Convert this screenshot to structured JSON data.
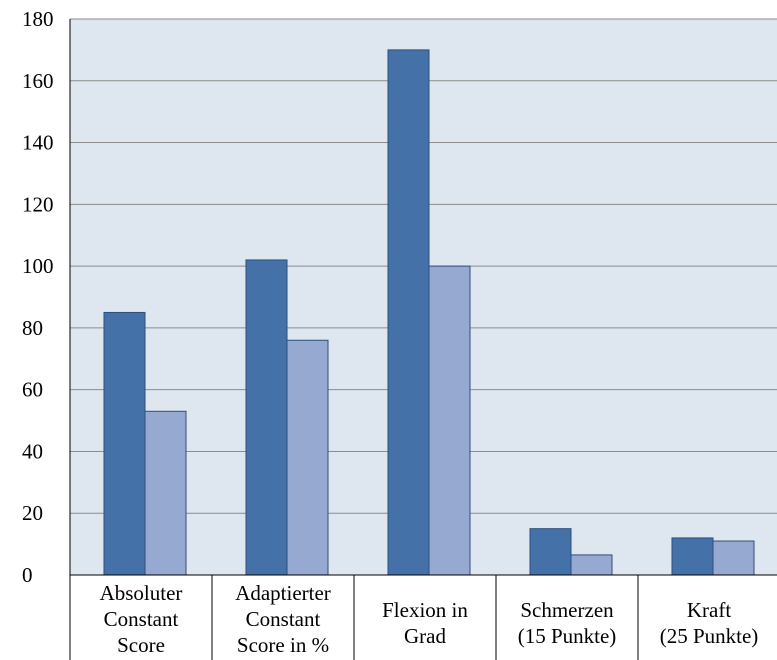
{
  "chart_data": {
    "type": "bar",
    "title": "",
    "xlabel": "",
    "ylabel": "",
    "ylim": [
      0,
      180
    ],
    "ytick_step": 20,
    "grid": true,
    "legend": "none",
    "categories": [
      [
        "Absoluter",
        "Constant",
        "Score"
      ],
      [
        "Adaptierter",
        "Constant",
        "Score in %"
      ],
      [
        "Flexion in",
        "Grad"
      ],
      [
        "Schmerzen",
        "(15 Punkte)"
      ],
      [
        "Kraft",
        "(25 Punkte)"
      ]
    ],
    "series": [
      {
        "values": [
          85,
          102,
          170,
          15,
          12
        ],
        "color": "#4472A8"
      },
      {
        "values": [
          53,
          76,
          100,
          6.5,
          11
        ],
        "color": "#95A9D1"
      }
    ],
    "plot_background": "#DEE6EF",
    "gridline_color": "#8C8C8C"
  }
}
